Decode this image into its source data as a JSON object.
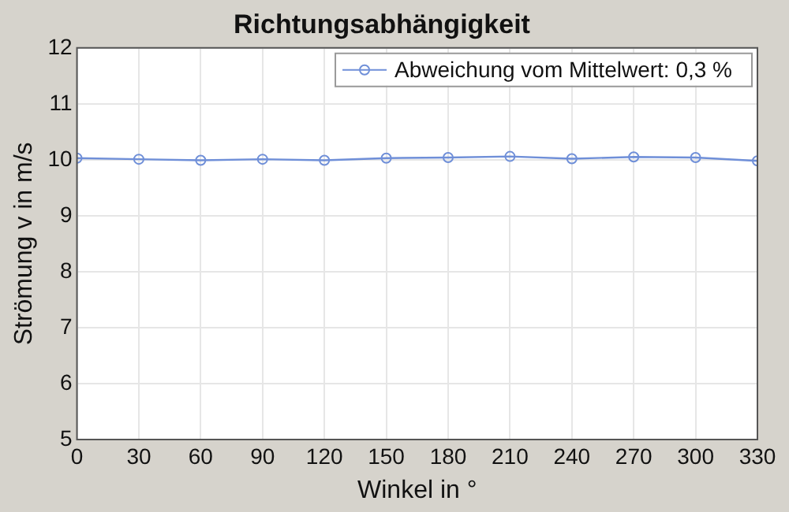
{
  "chart_data": {
    "type": "line",
    "title": "Richtungsabhängigkeit",
    "xlabel": "Winkel in °",
    "ylabel": "Strömung v in m/s",
    "x": [
      0,
      30,
      60,
      90,
      120,
      150,
      180,
      210,
      240,
      270,
      300,
      330
    ],
    "series": [
      {
        "name": "Abweichung vom Mittelwert: 0,3 %",
        "color": "#6f8fd8",
        "values": [
          10.03,
          10.01,
          9.99,
          10.01,
          9.99,
          10.03,
          10.04,
          10.06,
          10.02,
          10.05,
          10.04,
          9.98
        ]
      }
    ],
    "xlim": [
      0,
      330
    ],
    "xticks": [
      0,
      30,
      60,
      90,
      120,
      150,
      180,
      210,
      240,
      270,
      300,
      330
    ],
    "ylim": [
      5,
      12
    ],
    "yticks": [
      5,
      6,
      7,
      8,
      9,
      10,
      11,
      12
    ],
    "grid": true,
    "legend": "top right",
    "marker": "circle",
    "line_style": "solid"
  }
}
